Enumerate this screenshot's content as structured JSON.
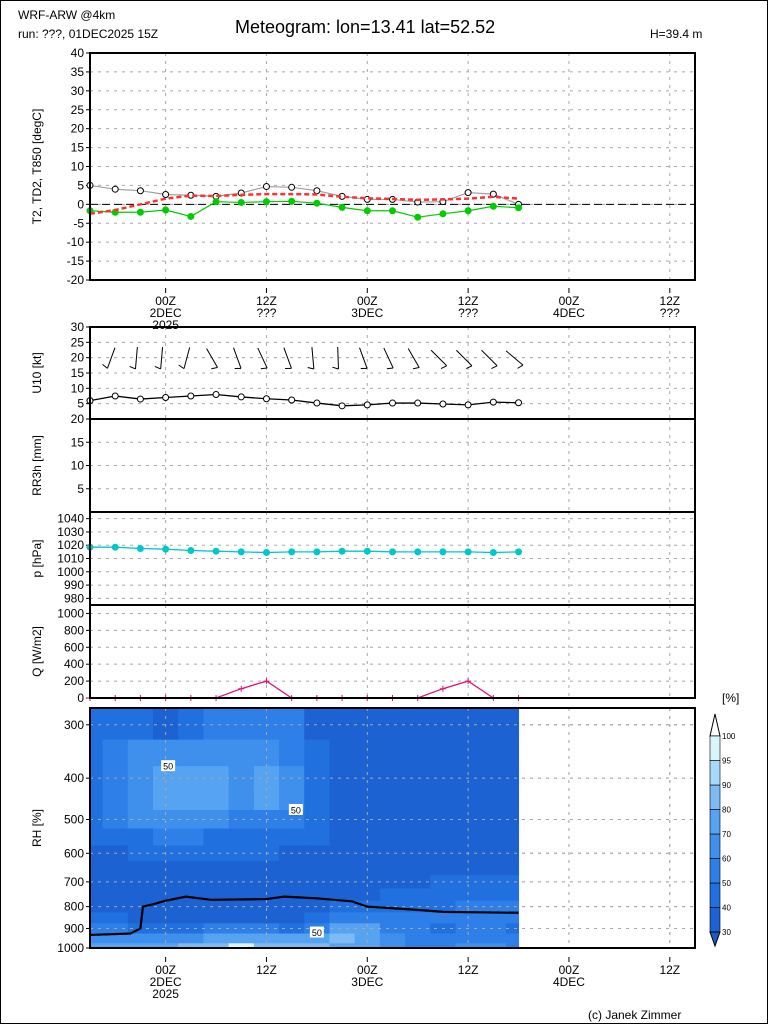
{
  "header": {
    "model": "WRF-ARW @4km",
    "run": "run: ???, 01DEC2025 15Z",
    "title": "Meteogram: lon=13.41 lat=52.52",
    "height": "H=39.4 m",
    "copyright": "(c) Janek Zimmer"
  },
  "chart_data": {
    "type": "meteogram",
    "title": "Meteogram: lon=13.41 lat=52.52",
    "x_hours_since_run": [
      0,
      3,
      6,
      9,
      12,
      15,
      18,
      21,
      24,
      27,
      30,
      33,
      36,
      39,
      42,
      45,
      48,
      51
    ],
    "x_range_hours": [
      0,
      72
    ],
    "time_ticks_top": [
      {
        "h": 9,
        "l1": "00Z",
        "l2": "2DEC",
        "l3": "2025"
      },
      {
        "h": 21,
        "l1": "12Z",
        "l2": "???",
        "l3": ""
      },
      {
        "h": 33,
        "l1": "00Z",
        "l2": "3DEC",
        "l3": ""
      },
      {
        "h": 45,
        "l1": "12Z",
        "l2": "???",
        "l3": ""
      },
      {
        "h": 57,
        "l1": "00Z",
        "l2": "4DEC",
        "l3": ""
      },
      {
        "h": 69,
        "l1": "12Z",
        "l2": "???",
        "l3": ""
      }
    ],
    "time_ticks_bottom": [
      {
        "h": 9,
        "l1": "00Z",
        "l2": "2DEC",
        "l3": "2025"
      },
      {
        "h": 21,
        "l1": "12Z",
        "l2": "",
        "l3": ""
      },
      {
        "h": 33,
        "l1": "00Z",
        "l2": "3DEC",
        "l3": ""
      },
      {
        "h": 45,
        "l1": "12Z",
        "l2": "",
        "l3": ""
      },
      {
        "h": 57,
        "l1": "00Z",
        "l2": "4DEC",
        "l3": ""
      },
      {
        "h": 69,
        "l1": "12Z",
        "l2": "",
        "l3": ""
      }
    ],
    "panels": {
      "temp": {
        "ylabel": "T2, TD2, T850 [degC]",
        "ylim": [
          -20,
          40
        ],
        "yticks": [
          -20,
          -15,
          -10,
          -5,
          0,
          5,
          10,
          15,
          20,
          25,
          30,
          35,
          40
        ],
        "series": [
          {
            "name": "T2",
            "color": "#a0a0a0",
            "marker": "open-circle",
            "values": [
              5.0,
              4.0,
              3.6,
              2.6,
              2.4,
              2.1,
              3.0,
              4.7,
              4.5,
              3.6,
              2.1,
              1.3,
              1.3,
              0.6,
              0.7,
              3.1,
              2.7,
              0.0
            ]
          },
          {
            "name": "TD2",
            "color": "#00cc00",
            "marker": "filled-circle",
            "values": [
              -1.7,
              -2.1,
              -2.1,
              -1.5,
              -3.2,
              0.7,
              0.5,
              0.7,
              0.8,
              0.3,
              -0.8,
              -1.7,
              -1.7,
              -3.4,
              -2.5,
              -1.7,
              -0.5,
              -0.9
            ]
          },
          {
            "name": "T850",
            "color": "#ff3030",
            "marker": "none",
            "dashed": true,
            "values": [
              -2.5,
              -1.5,
              0.0,
              1.5,
              2.3,
              2.2,
              2.5,
              2.7,
              2.7,
              2.6,
              2.0,
              1.6,
              1.4,
              1.2,
              1.3,
              1.5,
              2.0,
              1.5
            ]
          }
        ]
      },
      "wind": {
        "ylabel": "U10 [kt]",
        "ylim": [
          0,
          30
        ],
        "yticks": [
          5,
          10,
          15,
          20,
          25,
          30
        ],
        "speed": {
          "name": "U10",
          "color": "#000000",
          "values": [
            6.0,
            7.5,
            6.5,
            7.0,
            7.5,
            8.0,
            7.2,
            6.6,
            6.2,
            5.2,
            4.3,
            4.6,
            5.2,
            5.2,
            4.9,
            4.6,
            5.5,
            5.3
          ]
        },
        "barb_direction_deg": [
          null,
          200,
          185,
          185,
          195,
          150,
          160,
          155,
          160,
          175,
          178,
          160,
          155,
          150,
          135,
          135,
          135,
          130
        ]
      },
      "rain": {
        "ylabel": "RR3h [mm]",
        "ylim": [
          0,
          20
        ],
        "yticks": [
          5,
          10,
          15,
          20
        ],
        "values": [
          0,
          0,
          0,
          0,
          0,
          0,
          0,
          0,
          0,
          0,
          0,
          0,
          0,
          0,
          0,
          0,
          0,
          0
        ]
      },
      "pressure": {
        "ylabel": "p [hPa]",
        "ylim": [
          975,
          1045
        ],
        "yticks": [
          980,
          990,
          1000,
          1010,
          1020,
          1030,
          1040
        ],
        "series": {
          "name": "p",
          "color": "#00c8c8",
          "values": [
            1018.5,
            1018.5,
            1017.5,
            1017,
            1016,
            1015.5,
            1015,
            1014.5,
            1015,
            1015,
            1015.5,
            1015.5,
            1015,
            1015,
            1015,
            1015,
            1014.5,
            1015
          ]
        }
      },
      "radiation": {
        "ylabel": "Q [W/m2]",
        "ylim": [
          0,
          1100
        ],
        "yticks": [
          0,
          200,
          400,
          600,
          800,
          1000
        ],
        "series": {
          "name": "Q",
          "color": "#e0107a",
          "values": [
            0,
            0,
            0,
            0,
            0,
            0,
            110,
            200,
            0,
            0,
            0,
            0,
            0,
            0,
            110,
            200,
            0,
            0
          ]
        }
      },
      "rh": {
        "type": "heatmap",
        "ylabel": "RH [%]",
        "ylim_hpa": [
          1000,
          274
        ],
        "scale": "log",
        "yticks": [
          300,
          400,
          500,
          600,
          700,
          800,
          900,
          1000
        ],
        "levels_hpa": [
          300,
          350,
          400,
          450,
          500,
          550,
          600,
          650,
          700,
          750,
          800,
          850,
          900,
          950,
          1000
        ],
        "values": [
          [
            40,
            42,
            45,
            45,
            45,
            42,
            38,
            35,
            35,
            35,
            35,
            42,
            55,
            65,
            70
          ],
          [
            45,
            55,
            58,
            58,
            55,
            45,
            38,
            35,
            35,
            35,
            35,
            40,
            55,
            65,
            72
          ],
          [
            42,
            60,
            65,
            65,
            60,
            48,
            40,
            35,
            35,
            35,
            35,
            35,
            48,
            65,
            75
          ],
          [
            38,
            62,
            70,
            72,
            62,
            50,
            40,
            35,
            35,
            35,
            35,
            35,
            45,
            62,
            78
          ],
          [
            42,
            62,
            72,
            72,
            62,
            50,
            40,
            35,
            35,
            35,
            32,
            35,
            45,
            65,
            80
          ],
          [
            50,
            62,
            70,
            70,
            60,
            48,
            40,
            35,
            35,
            35,
            32,
            38,
            52,
            72,
            88
          ],
          [
            55,
            62,
            68,
            68,
            58,
            48,
            40,
            35,
            35,
            35,
            32,
            38,
            55,
            75,
            95
          ],
          [
            58,
            65,
            72,
            70,
            58,
            48,
            40,
            35,
            35,
            35,
            32,
            38,
            55,
            75,
            88
          ],
          [
            50,
            58,
            65,
            65,
            55,
            45,
            38,
            35,
            35,
            35,
            32,
            38,
            48,
            70,
            82
          ],
          [
            38,
            45,
            48,
            45,
            42,
            40,
            36,
            35,
            35,
            35,
            35,
            40,
            55,
            78,
            80
          ],
          [
            35,
            38,
            38,
            38,
            36,
            35,
            35,
            35,
            35,
            38,
            40,
            55,
            75,
            80,
            78
          ],
          [
            35,
            35,
            35,
            35,
            35,
            35,
            35,
            35,
            35,
            38,
            42,
            55,
            70,
            75,
            72
          ],
          [
            35,
            35,
            35,
            35,
            35,
            35,
            35,
            35,
            35,
            40,
            45,
            52,
            55,
            60,
            62
          ],
          [
            35,
            35,
            35,
            35,
            35,
            35,
            35,
            35,
            38,
            42,
            45,
            52,
            50,
            55,
            58
          ],
          [
            35,
            35,
            35,
            35,
            35,
            35,
            35,
            35,
            40,
            45,
            48,
            52,
            48,
            55,
            58
          ],
          [
            35,
            35,
            35,
            35,
            35,
            35,
            35,
            35,
            40,
            48,
            55,
            52,
            50,
            55,
            60
          ],
          [
            35,
            35,
            35,
            35,
            35,
            35,
            35,
            35,
            40,
            48,
            55,
            52,
            50,
            55,
            60
          ],
          [
            35,
            35,
            35,
            35,
            35,
            35,
            35,
            35,
            40,
            45,
            52,
            50,
            48,
            55,
            58
          ]
        ],
        "contour_labels": [
          {
            "text": "50",
            "h": 9.3,
            "p": 375
          },
          {
            "text": "50",
            "h": 24.5,
            "p": 475
          },
          {
            "text": "50",
            "h": 27,
            "p": 920
          }
        ],
        "black_line": {
          "h": [
            0,
            4.8,
            6,
            6.3,
            7.5,
            9,
            11.4,
            14.4,
            21,
            23.1,
            27,
            31.2,
            33,
            39,
            42,
            51
          ],
          "p": [
            932,
            925,
            900,
            800,
            790,
            775,
            758,
            771,
            768,
            758,
            765,
            778,
            800,
            814,
            823,
            827
          ]
        },
        "colorbar": {
          "unit": "[%]",
          "bounds": [
            30,
            40,
            50,
            60,
            70,
            80,
            90,
            95,
            100
          ],
          "colors": [
            "#1c62d2",
            "#2170e0",
            "#2e80e8",
            "#3f90ed",
            "#56a3f1",
            "#7dbbf5",
            "#a8d8fa",
            "#d6f6fb"
          ],
          "under_color": "#1a5cc4",
          "over_color": "#ffffff"
        }
      }
    }
  }
}
